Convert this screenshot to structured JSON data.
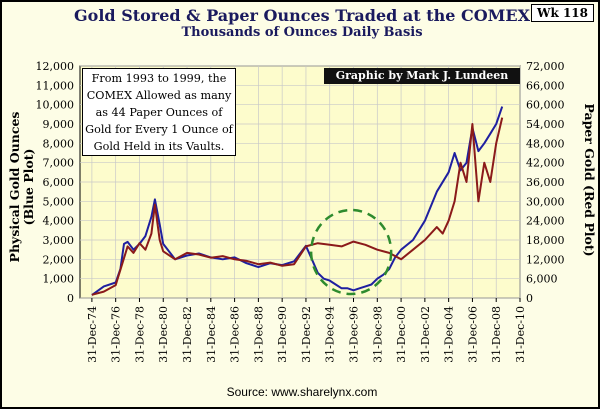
{
  "header": {
    "title": "Gold Stored & Paper Ounces Traded at the COMEX",
    "subtitle": "Thousands of Ounces Daily Basis",
    "week_badge": "Wk 118"
  },
  "annotation": {
    "lines": [
      "From 1993 to 1999, the",
      "COMEX Allowed as many",
      "as 44 Paper Ounces of",
      "Gold for Every 1 Ounce of",
      "Gold Held in its Vaults."
    ]
  },
  "credit": "Graphic by Mark J. Lundeen",
  "source": "Source: www.sharelynx.com",
  "colors": {
    "background": "#fdfde6",
    "physical_series": "#1f1fa0",
    "paper_series": "#8b1a1a",
    "highlight_circle": "#2e8b2e",
    "grid": "#c8c8c8"
  },
  "chart_data": {
    "type": "line",
    "xlabel": "",
    "left_axis": {
      "label_lines": [
        "Physical Gold Ounces",
        "(Blue Plot)"
      ],
      "ylim": [
        0,
        12000
      ],
      "ticks": [
        "0",
        "1,000",
        "2,000",
        "3,000",
        "4,000",
        "5,000",
        "6,000",
        "7,000",
        "8,000",
        "9,000",
        "10,000",
        "11,000",
        "12,000"
      ]
    },
    "right_axis": {
      "label_lines": [
        "Paper Gold (Red Plot)"
      ],
      "ylim": [
        0,
        72000
      ],
      "ticks": [
        "0",
        "6,000",
        "12,000",
        "18,000",
        "24,000",
        "30,000",
        "36,000",
        "42,000",
        "48,000",
        "54,000",
        "60,000",
        "66,000",
        "72,000"
      ]
    },
    "x_ticks": [
      "31-Dec-74",
      "31-Dec-76",
      "31-Dec-78",
      "31-Dec-80",
      "31-Dec-82",
      "31-Dec-84",
      "31-Dec-86",
      "31-Dec-88",
      "31-Dec-90",
      "31-Dec-92",
      "31-Dec-94",
      "31-Dec-96",
      "31-Dec-98",
      "31-Dec-00",
      "31-Dec-02",
      "31-Dec-04",
      "31-Dec-06",
      "31-Dec-08",
      "31-Dec-10"
    ],
    "xlim": [
      1974.0,
      2011.0
    ],
    "grid": true,
    "series": [
      {
        "axis": "left",
        "x": [
          1975.0,
          1976.0,
          1977.0,
          1977.4,
          1977.7,
          1978.0,
          1978.5,
          1979.0,
          1979.5,
          1980.0,
          1980.3,
          1980.7,
          1981.0,
          1981.5,
          1982.0,
          1983.0,
          1984.0,
          1985.0,
          1986.0,
          1987.0,
          1988.0,
          1989.0,
          1990.0,
          1991.0,
          1992.0,
          1993.0,
          1993.5,
          1994.0,
          1994.5,
          1995.0,
          1995.5,
          1996.0,
          1996.5,
          1997.0,
          1997.5,
          1998.0,
          1998.5,
          1999.0,
          1999.5,
          2000.0,
          2000.5,
          2001.0,
          2002.0,
          2003.0,
          2004.0,
          2005.0,
          2005.5,
          2006.0,
          2006.5,
          2007.0,
          2007.5,
          2008.0,
          2008.5,
          2009.0,
          2009.5
        ],
        "values": [
          150,
          600,
          800,
          1500,
          2800,
          2900,
          2500,
          2800,
          3200,
          4200,
          5100,
          3800,
          2800,
          2400,
          2000,
          2200,
          2300,
          2100,
          2000,
          2100,
          1800,
          1600,
          1800,
          1700,
          1900,
          2700,
          2000,
          1300,
          1000,
          900,
          700,
          500,
          500,
          400,
          500,
          600,
          700,
          1000,
          1200,
          1500,
          2100,
          2500,
          3000,
          4000,
          5500,
          6500,
          7500,
          6600,
          7000,
          8800,
          7600,
          8000,
          8500,
          9000,
          9900
        ]
      },
      {
        "axis": "right",
        "x": [
          1975.0,
          1976.0,
          1977.0,
          1978.0,
          1978.5,
          1979.0,
          1979.5,
          1980.0,
          1980.3,
          1980.7,
          1981.0,
          1982.0,
          1983.0,
          1984.0,
          1985.0,
          1986.0,
          1987.0,
          1988.0,
          1989.0,
          1990.0,
          1991.0,
          1992.0,
          1993.0,
          1994.0,
          1995.0,
          1996.0,
          1997.0,
          1998.0,
          1999.0,
          2000.0,
          2001.0,
          2002.0,
          2003.0,
          2004.0,
          2004.5,
          2005.0,
          2005.5,
          2006.0,
          2006.5,
          2007.0,
          2007.5,
          2008.0,
          2008.5,
          2009.0,
          2009.5
        ],
        "values": [
          1000,
          2000,
          4000,
          16000,
          14000,
          17000,
          15000,
          20000,
          29000,
          18000,
          14500,
          12000,
          14000,
          13500,
          12500,
          13000,
          12000,
          11500,
          10500,
          11000,
          10000,
          10500,
          16000,
          17000,
          16500,
          16000,
          17500,
          16500,
          15000,
          14000,
          12000,
          15000,
          18000,
          22000,
          20000,
          24000,
          30000,
          42000,
          36000,
          54000,
          30000,
          42000,
          36000,
          48000,
          56000
        ]
      }
    ]
  }
}
